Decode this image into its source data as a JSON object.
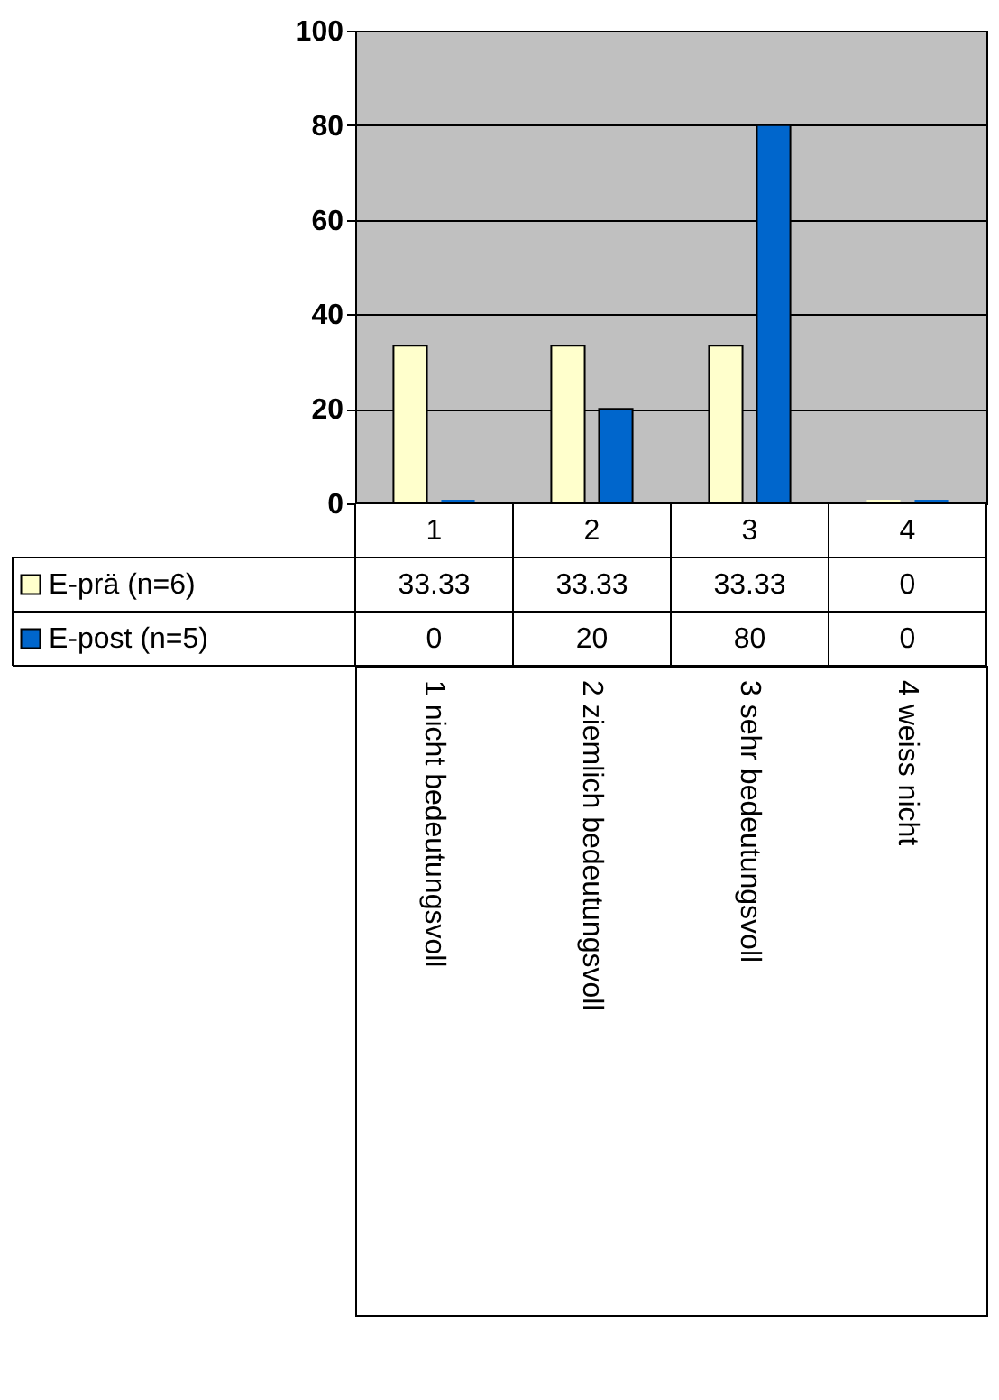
{
  "chart_data": {
    "type": "bar",
    "categories": [
      "1",
      "2",
      "3",
      "4"
    ],
    "series": [
      {
        "name": "E-prä (n=6)",
        "color": "#ffffcc",
        "values": [
          33.33,
          33.33,
          33.33,
          0
        ]
      },
      {
        "name": "E-post (n=5)",
        "color": "#0066cc",
        "values": [
          0,
          20,
          80,
          0
        ]
      }
    ],
    "ylim": [
      0,
      100
    ],
    "yticks": [
      0,
      20,
      40,
      60,
      80,
      100
    ],
    "grid": "y",
    "data_labels": true,
    "legend": "bottom left",
    "annotations": [
      "1 nicht bedeutungsvoll",
      "2 ziemlich bedeutungsvoll",
      "3 sehr bedeutungsvoll",
      "4 weiss nicht"
    ]
  }
}
